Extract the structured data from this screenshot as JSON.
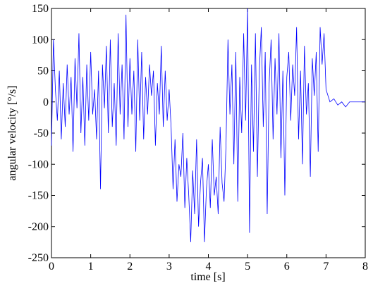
{
  "chart_data": {
    "type": "line",
    "xlabel": "time [s]",
    "ylabel": "angular velocity [°/s]",
    "xlim": [
      0,
      8
    ],
    "ylim": [
      -250,
      150
    ],
    "xticks": [
      0,
      1,
      2,
      3,
      4,
      5,
      6,
      7,
      8
    ],
    "yticks": [
      -250,
      -200,
      -150,
      -100,
      -50,
      0,
      50,
      100,
      150
    ],
    "color": "#0000ff",
    "x": [
      0,
      0.05,
      0.1,
      0.15,
      0.2,
      0.25,
      0.3,
      0.35,
      0.4,
      0.45,
      0.5,
      0.55,
      0.6,
      0.65,
      0.7,
      0.75,
      0.8,
      0.85,
      0.9,
      0.95,
      1,
      1.05,
      1.1,
      1.15,
      1.2,
      1.25,
      1.3,
      1.35,
      1.4,
      1.45,
      1.5,
      1.55,
      1.6,
      1.65,
      1.7,
      1.75,
      1.8,
      1.85,
      1.9,
      1.95,
      2,
      2.05,
      2.1,
      2.15,
      2.2,
      2.25,
      2.3,
      2.35,
      2.4,
      2.45,
      2.5,
      2.55,
      2.6,
      2.65,
      2.7,
      2.75,
      2.8,
      2.85,
      2.9,
      2.95,
      3,
      3.05,
      3.1,
      3.15,
      3.2,
      3.25,
      3.3,
      3.35,
      3.4,
      3.45,
      3.5,
      3.55,
      3.6,
      3.65,
      3.7,
      3.75,
      3.8,
      3.85,
      3.9,
      3.95,
      4,
      4.05,
      4.1,
      4.15,
      4.2,
      4.25,
      4.3,
      4.35,
      4.4,
      4.45,
      4.5,
      4.55,
      4.6,
      4.65,
      4.7,
      4.75,
      4.8,
      4.85,
      4.9,
      4.95,
      5,
      5.05,
      5.1,
      5.15,
      5.2,
      5.25,
      5.3,
      5.35,
      5.4,
      5.45,
      5.5,
      5.55,
      5.6,
      5.65,
      5.7,
      5.75,
      5.8,
      5.85,
      5.9,
      5.95,
      6,
      6.05,
      6.1,
      6.15,
      6.2,
      6.25,
      6.3,
      6.35,
      6.4,
      6.45,
      6.5,
      6.55,
      6.6,
      6.65,
      6.7,
      6.75,
      6.8,
      6.85,
      6.9,
      6.95,
      7,
      7.1,
      7.2,
      7.3,
      7.4,
      7.5,
      7.6,
      7.7,
      8
    ],
    "values": [
      -70,
      100,
      20,
      -30,
      50,
      -60,
      30,
      -40,
      60,
      -20,
      40,
      -80,
      70,
      -10,
      110,
      -50,
      40,
      -70,
      60,
      -30,
      80,
      -20,
      20,
      -60,
      50,
      -140,
      60,
      -10,
      90,
      -50,
      100,
      -40,
      30,
      -70,
      110,
      -20,
      60,
      -60,
      140,
      -40,
      70,
      -20,
      50,
      -80,
      100,
      -30,
      80,
      -60,
      40,
      -20,
      60,
      10,
      50,
      -70,
      30,
      -20,
      90,
      -40,
      50,
      -30,
      20,
      -40,
      -140,
      -60,
      -160,
      -100,
      -120,
      -50,
      -170,
      -90,
      -150,
      -225,
      -110,
      -180,
      -60,
      -200,
      -130,
      -90,
      -225,
      -140,
      -100,
      -170,
      -60,
      -150,
      -120,
      -180,
      -40,
      -130,
      -160,
      -70,
      100,
      -20,
      60,
      -100,
      80,
      -160,
      40,
      -50,
      110,
      -30,
      150,
      -210,
      60,
      -80,
      110,
      -120,
      50,
      120,
      -40,
      80,
      -180,
      30,
      100,
      -60,
      70,
      -20,
      110,
      -90,
      50,
      -150,
      40,
      80,
      -30,
      60,
      10,
      120,
      -60,
      50,
      -100,
      90,
      -20,
      30,
      -120,
      70,
      10,
      80,
      -80,
      120,
      60,
      110,
      20,
      0,
      5,
      -5,
      0,
      -8,
      0,
      0,
      0
    ]
  }
}
